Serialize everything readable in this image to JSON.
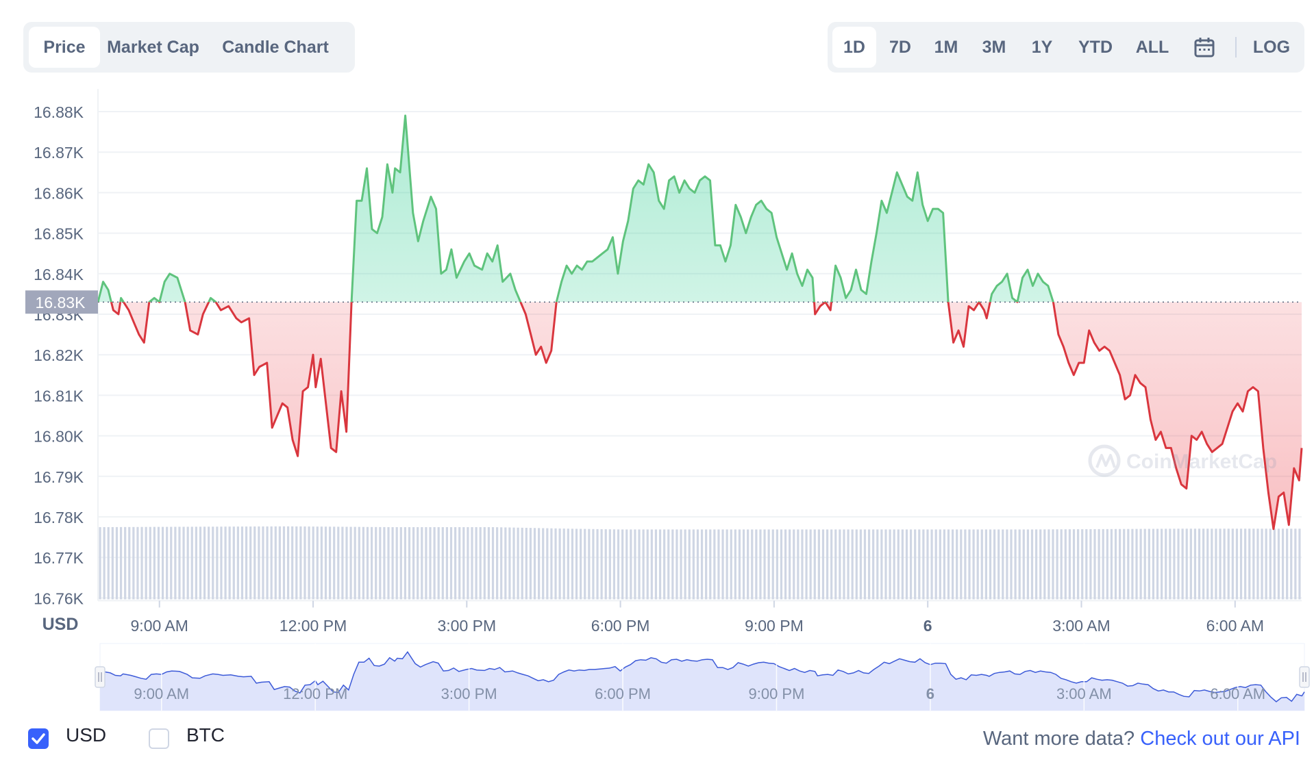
{
  "tabs": [
    {
      "label": "Price",
      "active": true
    },
    {
      "label": "Market Cap",
      "active": false
    },
    {
      "label": "Candle Chart",
      "active": false
    }
  ],
  "ranges": [
    {
      "label": "1D",
      "active": true
    },
    {
      "label": "7D",
      "active": false
    },
    {
      "label": "1M",
      "active": false
    },
    {
      "label": "3M",
      "active": false
    },
    {
      "label": "1Y",
      "active": false
    },
    {
      "label": "YTD",
      "active": false
    },
    {
      "label": "ALL",
      "active": false
    }
  ],
  "calendar_icon": "calendar-icon",
  "log_label": "LOG",
  "currency_options": [
    {
      "label": "USD",
      "checked": true
    },
    {
      "label": "BTC",
      "checked": false
    }
  ],
  "footer": {
    "prefix": "Want more data?",
    "link": "Check out our API"
  },
  "watermark": "CoinMarketCap",
  "colors": {
    "up": "#16c784",
    "up_line": "#5fc37d",
    "down": "#ea3943",
    "down_line": "#d9363e",
    "accent": "#3861fb",
    "volume": "#cfd6e4",
    "navigator_fill": "#dfe4fb",
    "navigator_line": "#3c5ad8"
  },
  "chart_data": {
    "type": "area",
    "currency_label": "USD",
    "baseline": 16833,
    "baseline_label": "16.83K",
    "y_ticks": [
      "16.88K",
      "16.87K",
      "16.86K",
      "16.85K",
      "16.84K",
      "16.83K",
      "16.82K",
      "16.81K",
      "16.80K",
      "16.79K",
      "16.78K",
      "16.77K",
      "16.76K"
    ],
    "ylim": [
      16760,
      16885
    ],
    "x_ticks": [
      "9:00 AM",
      "12:00 PM",
      "3:00 PM",
      "6:00 PM",
      "9:00 PM",
      "6",
      "3:00 AM",
      "6:00 AM"
    ],
    "x_start_hour": 7.8,
    "x_end_hour": 31.3,
    "price": [
      [
        7.8,
        16833
      ],
      [
        7.9,
        16838
      ],
      [
        8.0,
        16836
      ],
      [
        8.1,
        16831
      ],
      [
        8.2,
        16830
      ],
      [
        8.25,
        16834
      ],
      [
        8.4,
        16831
      ],
      [
        8.5,
        16828
      ],
      [
        8.6,
        16825
      ],
      [
        8.7,
        16823
      ],
      [
        8.8,
        16833
      ],
      [
        8.9,
        16834
      ],
      [
        9.0,
        16833
      ],
      [
        9.1,
        16838
      ],
      [
        9.2,
        16840
      ],
      [
        9.35,
        16839
      ],
      [
        9.5,
        16833
      ],
      [
        9.6,
        16826
      ],
      [
        9.75,
        16825
      ],
      [
        9.85,
        16830
      ],
      [
        10.0,
        16834
      ],
      [
        10.1,
        16833
      ],
      [
        10.2,
        16831
      ],
      [
        10.35,
        16832
      ],
      [
        10.5,
        16829
      ],
      [
        10.6,
        16828
      ],
      [
        10.75,
        16829
      ],
      [
        10.85,
        16815
      ],
      [
        10.95,
        16817
      ],
      [
        11.1,
        16818
      ],
      [
        11.2,
        16802
      ],
      [
        11.3,
        16805
      ],
      [
        11.4,
        16808
      ],
      [
        11.5,
        16807
      ],
      [
        11.6,
        16799
      ],
      [
        11.7,
        16795
      ],
      [
        11.8,
        16811
      ],
      [
        11.9,
        16812
      ],
      [
        12.0,
        16820
      ],
      [
        12.05,
        16812
      ],
      [
        12.15,
        16819
      ],
      [
        12.25,
        16808
      ],
      [
        12.35,
        16797
      ],
      [
        12.45,
        16796
      ],
      [
        12.55,
        16811
      ],
      [
        12.65,
        16801
      ],
      [
        12.75,
        16833
      ],
      [
        12.85,
        16858
      ],
      [
        12.95,
        16858
      ],
      [
        13.05,
        16866
      ],
      [
        13.15,
        16851
      ],
      [
        13.25,
        16850
      ],
      [
        13.35,
        16854
      ],
      [
        13.45,
        16867
      ],
      [
        13.55,
        16860
      ],
      [
        13.6,
        16866
      ],
      [
        13.7,
        16865
      ],
      [
        13.8,
        16879
      ],
      [
        13.95,
        16855
      ],
      [
        14.05,
        16848
      ],
      [
        14.15,
        16853
      ],
      [
        14.3,
        16859
      ],
      [
        14.4,
        16856
      ],
      [
        14.5,
        16840
      ],
      [
        14.6,
        16841
      ],
      [
        14.7,
        16846
      ],
      [
        14.8,
        16839
      ],
      [
        14.95,
        16843
      ],
      [
        15.05,
        16845
      ],
      [
        15.15,
        16842
      ],
      [
        15.3,
        16841
      ],
      [
        15.4,
        16845
      ],
      [
        15.5,
        16843
      ],
      [
        15.6,
        16847
      ],
      [
        15.7,
        16838
      ],
      [
        15.85,
        16840
      ],
      [
        15.95,
        16836
      ],
      [
        16.05,
        16833
      ],
      [
        16.15,
        16830
      ],
      [
        16.25,
        16825
      ],
      [
        16.35,
        16820
      ],
      [
        16.45,
        16822
      ],
      [
        16.55,
        16818
      ],
      [
        16.65,
        16821
      ],
      [
        16.75,
        16833
      ],
      [
        16.85,
        16838
      ],
      [
        16.95,
        16842
      ],
      [
        17.05,
        16840
      ],
      [
        17.15,
        16842
      ],
      [
        17.25,
        16841
      ],
      [
        17.35,
        16843
      ],
      [
        17.45,
        16843
      ],
      [
        17.55,
        16844
      ],
      [
        17.65,
        16845
      ],
      [
        17.75,
        16846
      ],
      [
        17.85,
        16849
      ],
      [
        17.95,
        16840
      ],
      [
        18.05,
        16848
      ],
      [
        18.15,
        16853
      ],
      [
        18.25,
        16861
      ],
      [
        18.35,
        16863
      ],
      [
        18.45,
        16862
      ],
      [
        18.55,
        16867
      ],
      [
        18.65,
        16865
      ],
      [
        18.75,
        16858
      ],
      [
        18.85,
        16856
      ],
      [
        18.95,
        16863
      ],
      [
        19.05,
        16864
      ],
      [
        19.15,
        16860
      ],
      [
        19.25,
        16863
      ],
      [
        19.35,
        16861
      ],
      [
        19.45,
        16860
      ],
      [
        19.55,
        16863
      ],
      [
        19.65,
        16864
      ],
      [
        19.75,
        16863
      ],
      [
        19.85,
        16847
      ],
      [
        19.95,
        16847
      ],
      [
        20.05,
        16843
      ],
      [
        20.15,
        16847
      ],
      [
        20.25,
        16857
      ],
      [
        20.35,
        16854
      ],
      [
        20.45,
        16850
      ],
      [
        20.55,
        16854
      ],
      [
        20.65,
        16857
      ],
      [
        20.75,
        16858
      ],
      [
        20.85,
        16856
      ],
      [
        20.95,
        16855
      ],
      [
        21.05,
        16849
      ],
      [
        21.15,
        16845
      ],
      [
        21.25,
        16841
      ],
      [
        21.35,
        16845
      ],
      [
        21.45,
        16840
      ],
      [
        21.55,
        16837
      ],
      [
        21.65,
        16841
      ],
      [
        21.75,
        16839
      ],
      [
        21.8,
        16830
      ],
      [
        21.9,
        16832
      ],
      [
        22.0,
        16833
      ],
      [
        22.1,
        16831
      ],
      [
        22.2,
        16842
      ],
      [
        22.3,
        16839
      ],
      [
        22.4,
        16834
      ],
      [
        22.5,
        16836
      ],
      [
        22.6,
        16841
      ],
      [
        22.7,
        16836
      ],
      [
        22.8,
        16835
      ],
      [
        22.9,
        16843
      ],
      [
        23.0,
        16850
      ],
      [
        23.1,
        16858
      ],
      [
        23.2,
        16855
      ],
      [
        23.3,
        16860
      ],
      [
        23.4,
        16865
      ],
      [
        23.5,
        16862
      ],
      [
        23.6,
        16859
      ],
      [
        23.7,
        16858
      ],
      [
        23.8,
        16865
      ],
      [
        23.9,
        16857
      ],
      [
        24.0,
        16853
      ],
      [
        24.1,
        16856
      ],
      [
        24.2,
        16856
      ],
      [
        24.3,
        16855
      ],
      [
        24.4,
        16833
      ],
      [
        24.5,
        16823
      ],
      [
        24.6,
        16826
      ],
      [
        24.7,
        16822
      ],
      [
        24.8,
        16832
      ],
      [
        24.9,
        16831
      ],
      [
        25.0,
        16833
      ],
      [
        25.1,
        16831
      ],
      [
        25.15,
        16829
      ],
      [
        25.25,
        16835
      ],
      [
        25.35,
        16837
      ],
      [
        25.45,
        16838
      ],
      [
        25.55,
        16840
      ],
      [
        25.65,
        16834
      ],
      [
        25.75,
        16833
      ],
      [
        25.85,
        16839
      ],
      [
        25.95,
        16841
      ],
      [
        26.05,
        16837
      ],
      [
        26.15,
        16840
      ],
      [
        26.25,
        16838
      ],
      [
        26.35,
        16837
      ],
      [
        26.45,
        16833
      ],
      [
        26.55,
        16825
      ],
      [
        26.65,
        16822
      ],
      [
        26.75,
        16818
      ],
      [
        26.85,
        16815
      ],
      [
        26.95,
        16818
      ],
      [
        27.05,
        16818
      ],
      [
        27.15,
        16826
      ],
      [
        27.25,
        16823
      ],
      [
        27.35,
        16821
      ],
      [
        27.45,
        16822
      ],
      [
        27.55,
        16821
      ],
      [
        27.65,
        16818
      ],
      [
        27.75,
        16815
      ],
      [
        27.85,
        16809
      ],
      [
        27.95,
        16810
      ],
      [
        28.05,
        16815
      ],
      [
        28.15,
        16813
      ],
      [
        28.25,
        16812
      ],
      [
        28.35,
        16804
      ],
      [
        28.45,
        16799
      ],
      [
        28.55,
        16801
      ],
      [
        28.65,
        16797
      ],
      [
        28.75,
        16797
      ],
      [
        28.85,
        16792
      ],
      [
        28.95,
        16788
      ],
      [
        29.05,
        16787
      ],
      [
        29.15,
        16800
      ],
      [
        29.25,
        16799
      ],
      [
        29.35,
        16801
      ],
      [
        29.45,
        16798
      ],
      [
        29.55,
        16796
      ],
      [
        29.65,
        16797
      ],
      [
        29.75,
        16798
      ],
      [
        29.85,
        16802
      ],
      [
        29.95,
        16806
      ],
      [
        30.05,
        16808
      ],
      [
        30.15,
        16806
      ],
      [
        30.25,
        16811
      ],
      [
        30.35,
        16812
      ],
      [
        30.45,
        16811
      ],
      [
        30.55,
        16797
      ],
      [
        30.65,
        16786
      ],
      [
        30.75,
        16777
      ],
      [
        30.85,
        16785
      ],
      [
        30.95,
        16786
      ],
      [
        31.05,
        16778
      ],
      [
        31.15,
        16792
      ],
      [
        31.25,
        16789
      ],
      [
        31.3,
        16797
      ]
    ],
    "volume_profile": [
      [
        7.8,
        0.93
      ],
      [
        11.5,
        0.94
      ],
      [
        13.5,
        0.93
      ],
      [
        15.5,
        0.93
      ],
      [
        17.0,
        0.91
      ],
      [
        18.0,
        0.9
      ],
      [
        22.0,
        0.9
      ],
      [
        26.0,
        0.9
      ],
      [
        29.0,
        0.91
      ],
      [
        31.3,
        0.91
      ]
    ]
  }
}
